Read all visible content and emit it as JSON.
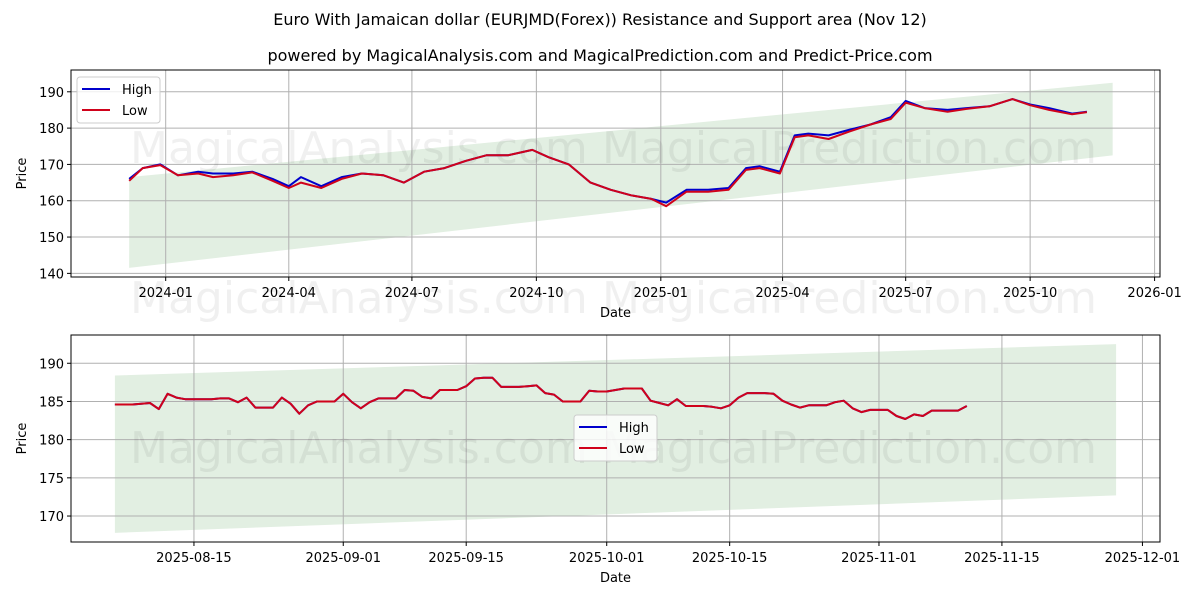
{
  "header": {
    "title": "Euro With Jamaican dollar (EURJMD(Forex)) Resistance and Support area (Nov 12)",
    "subtitle": "powered by MagicalAnalysis.com and MagicalPrediction.com and Predict-Price.com"
  },
  "watermark": {
    "left": "MagicalAnalysis.com",
    "right": "MagicalPrediction.com"
  },
  "colors": {
    "high": "#0000cc",
    "low": "#d0021b",
    "band": "#e2efe2",
    "grid": "#b0b0b0"
  },
  "legend": {
    "high": "High",
    "low": "Low"
  },
  "chart_data": [
    {
      "type": "line",
      "title": "Euro With Jamaican dollar (EURJMD(Forex)) Resistance and Support area (Nov 12)",
      "xlabel": "Date",
      "ylabel": "Price",
      "ylim": [
        139,
        196
      ],
      "yticks": [
        140,
        150,
        160,
        170,
        180,
        190
      ],
      "xticks": [
        "2024-01",
        "2024-04",
        "2024-07",
        "2024-10",
        "2025-01",
        "2025-04",
        "2025-07",
        "2025-10",
        "2026-01"
      ],
      "grid": true,
      "legend_position": "upper left",
      "band": {
        "start": "2023-12-05",
        "end": "2025-12-01",
        "upper_start": 166.5,
        "upper_end": 192.5,
        "lower_start": 141.5,
        "lower_end": 172.5
      },
      "x": [
        "2023-12-05",
        "2023-12-15",
        "2023-12-28",
        "2024-01-10",
        "2024-01-25",
        "2024-02-05",
        "2024-02-20",
        "2024-03-05",
        "2024-03-20",
        "2024-04-01",
        "2024-04-10",
        "2024-04-25",
        "2024-05-10",
        "2024-05-25",
        "2024-06-10",
        "2024-06-25",
        "2024-07-10",
        "2024-07-25",
        "2024-08-10",
        "2024-08-25",
        "2024-09-10",
        "2024-09-28",
        "2024-10-10",
        "2024-10-25",
        "2024-11-10",
        "2024-11-25",
        "2024-12-10",
        "2024-12-25",
        "2025-01-05",
        "2025-01-20",
        "2025-02-05",
        "2025-02-20",
        "2025-03-05",
        "2025-03-15",
        "2025-03-30",
        "2025-04-10",
        "2025-04-20",
        "2025-05-05",
        "2025-05-20",
        "2025-06-05",
        "2025-06-20",
        "2025-07-01",
        "2025-07-15",
        "2025-08-01",
        "2025-08-15",
        "2025-09-01",
        "2025-09-18",
        "2025-10-01",
        "2025-10-15",
        "2025-11-01",
        "2025-11-12"
      ],
      "series": [
        {
          "name": "High",
          "values": [
            166.0,
            169.0,
            170.0,
            167.0,
            168.0,
            167.5,
            167.5,
            168.0,
            166.0,
            164.0,
            166.5,
            164.0,
            166.5,
            167.5,
            167.0,
            165.0,
            168.0,
            169.0,
            171.0,
            172.5,
            172.5,
            174.0,
            172.0,
            170.0,
            165.0,
            163.0,
            161.5,
            160.5,
            159.5,
            163.0,
            163.0,
            163.5,
            169.0,
            169.5,
            168.0,
            178.0,
            178.5,
            178.0,
            179.5,
            181.0,
            183.0,
            187.5,
            185.5,
            185.0,
            185.5,
            186.0,
            188.0,
            186.5,
            185.5,
            184.0,
            184.5
          ]
        },
        {
          "name": "Low",
          "values": [
            165.5,
            169.0,
            169.8,
            167.0,
            167.5,
            166.5,
            167.0,
            167.8,
            165.5,
            163.5,
            165.0,
            163.5,
            166.0,
            167.5,
            167.0,
            165.0,
            168.0,
            169.0,
            171.0,
            172.5,
            172.5,
            174.0,
            172.0,
            170.0,
            165.0,
            163.0,
            161.5,
            160.5,
            158.5,
            162.5,
            162.5,
            163.0,
            168.5,
            169.0,
            167.5,
            177.5,
            178.0,
            177.0,
            179.0,
            181.0,
            182.5,
            187.0,
            185.5,
            184.5,
            185.3,
            186.0,
            188.0,
            186.3,
            185.0,
            183.8,
            184.4
          ]
        }
      ]
    },
    {
      "type": "line",
      "xlabel": "Date",
      "ylabel": "Price",
      "ylim": [
        166.6,
        193.7
      ],
      "yticks": [
        170,
        175,
        180,
        185,
        190
      ],
      "xticks": [
        "2025-08-15",
        "2025-09-01",
        "2025-09-15",
        "2025-10-01",
        "2025-10-15",
        "2025-11-01",
        "2025-11-15",
        "2025-12-01"
      ],
      "grid": true,
      "legend_position": "center",
      "band": {
        "start": "2025-08-06",
        "end": "2025-11-28",
        "upper_start": 188.4,
        "upper_end": 192.5,
        "lower_start": 167.8,
        "lower_end": 172.7
      },
      "x": [
        "2025-08-06",
        "2025-08-07",
        "2025-08-08",
        "2025-08-10",
        "2025-08-11",
        "2025-08-12",
        "2025-08-13",
        "2025-08-14",
        "2025-08-15",
        "2025-08-17",
        "2025-08-18",
        "2025-08-19",
        "2025-08-20",
        "2025-08-21",
        "2025-08-22",
        "2025-08-24",
        "2025-08-25",
        "2025-08-26",
        "2025-08-27",
        "2025-08-28",
        "2025-08-29",
        "2025-08-31",
        "2025-09-01",
        "2025-09-02",
        "2025-09-03",
        "2025-09-04",
        "2025-09-05",
        "2025-09-07",
        "2025-09-08",
        "2025-09-09",
        "2025-09-10",
        "2025-09-11",
        "2025-09-12",
        "2025-09-14",
        "2025-09-15",
        "2025-09-16",
        "2025-09-17",
        "2025-09-18",
        "2025-09-19",
        "2025-09-21",
        "2025-09-22",
        "2025-09-23",
        "2025-09-24",
        "2025-09-25",
        "2025-09-26",
        "2025-09-28",
        "2025-09-29",
        "2025-09-30",
        "2025-10-01",
        "2025-10-02",
        "2025-10-03",
        "2025-10-05",
        "2025-10-06",
        "2025-10-07",
        "2025-10-08",
        "2025-10-09",
        "2025-10-10",
        "2025-10-12",
        "2025-10-13",
        "2025-10-14",
        "2025-10-15",
        "2025-10-16",
        "2025-10-17",
        "2025-10-19",
        "2025-10-20",
        "2025-10-21",
        "2025-10-22",
        "2025-10-23",
        "2025-10-24",
        "2025-10-26",
        "2025-10-27",
        "2025-10-28",
        "2025-10-29",
        "2025-10-30",
        "2025-10-31",
        "2025-11-02",
        "2025-11-03",
        "2025-11-04",
        "2025-11-05",
        "2025-11-06",
        "2025-11-07",
        "2025-11-09",
        "2025-11-10",
        "2025-11-11"
      ],
      "series": [
        {
          "name": "High",
          "values": [
            184.6,
            184.6,
            184.6,
            184.8,
            184.0,
            186.0,
            185.5,
            185.3,
            185.3,
            185.3,
            185.4,
            185.4,
            184.9,
            185.5,
            184.2,
            184.2,
            185.5,
            184.7,
            183.4,
            184.5,
            185.0,
            185.0,
            186.0,
            184.9,
            184.1,
            184.9,
            185.4,
            185.4,
            186.5,
            186.4,
            185.6,
            185.4,
            186.5,
            186.5,
            187.0,
            188.0,
            188.1,
            188.1,
            186.9,
            186.9,
            187.0,
            187.1,
            186.1,
            185.9,
            185.0,
            185.0,
            186.4,
            186.3,
            186.3,
            186.5,
            186.7,
            186.7,
            185.1,
            184.8,
            184.5,
            185.3,
            184.4,
            184.4,
            184.3,
            184.1,
            184.5,
            185.5,
            186.1,
            186.1,
            186.0,
            185.1,
            184.6,
            184.2,
            184.5,
            184.5,
            184.9,
            185.1,
            184.1,
            183.6,
            183.9,
            183.9,
            183.1,
            182.7,
            183.3,
            183.1,
            183.8,
            183.8,
            183.8,
            184.4
          ]
        },
        {
          "name": "Low",
          "values": [
            184.6,
            184.6,
            184.6,
            184.8,
            184.0,
            186.0,
            185.5,
            185.3,
            185.3,
            185.3,
            185.4,
            185.4,
            184.9,
            185.5,
            184.2,
            184.2,
            185.5,
            184.7,
            183.4,
            184.5,
            185.0,
            185.0,
            186.0,
            184.9,
            184.1,
            184.9,
            185.4,
            185.4,
            186.5,
            186.4,
            185.6,
            185.4,
            186.5,
            186.5,
            187.0,
            188.0,
            188.1,
            188.1,
            186.9,
            186.9,
            187.0,
            187.1,
            186.1,
            185.9,
            185.0,
            185.0,
            186.4,
            186.3,
            186.3,
            186.5,
            186.7,
            186.7,
            185.1,
            184.8,
            184.5,
            185.3,
            184.4,
            184.4,
            184.3,
            184.1,
            184.5,
            185.5,
            186.1,
            186.1,
            186.0,
            185.1,
            184.6,
            184.2,
            184.5,
            184.5,
            184.9,
            185.1,
            184.1,
            183.6,
            183.9,
            183.9,
            183.1,
            182.7,
            183.3,
            183.1,
            183.8,
            183.8,
            183.8,
            184.4
          ]
        }
      ]
    }
  ]
}
